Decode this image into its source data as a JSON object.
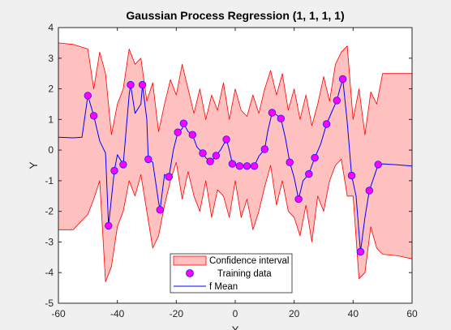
{
  "chart_data": {
    "type": "line",
    "title": "Gaussian Process Regression (1, 1, 1, 1)",
    "xlabel": "X",
    "ylabel": "Y",
    "xlim": [
      -60,
      60
    ],
    "ylim": [
      -5,
      4
    ],
    "xticks": [
      -60,
      -40,
      -20,
      0,
      20,
      40,
      60
    ],
    "yticks": [
      -5,
      -4,
      -3,
      -2,
      -1,
      0,
      1,
      2,
      3,
      4
    ],
    "grid": false,
    "legend_placement": "bottom-center",
    "colors": {
      "background": "#f0f0f0",
      "axes_bg": "#ffffff",
      "band_fill": "#ffc0c0",
      "band_edge": "#ff0000",
      "marker_fill": "#ff00ff",
      "marker_edge": "#1a1aff",
      "mean_line": "#0000ff"
    },
    "series": [
      {
        "name": "Confidence interval",
        "kind": "band",
        "x": [
          -60,
          -55,
          -50,
          -48,
          -46,
          -44,
          -42,
          -40,
          -38,
          -36,
          -34,
          -32,
          -30,
          -28,
          -26,
          -24,
          -22,
          -20,
          -18,
          -16,
          -14,
          -12,
          -10,
          -8,
          -6,
          -4,
          -2,
          0,
          2,
          4,
          6,
          8,
          10,
          12,
          14,
          16,
          18,
          20,
          22,
          24,
          26,
          28,
          30,
          32,
          34,
          36,
          38,
          40,
          42,
          44,
          46,
          48,
          50,
          55,
          60
        ],
        "upper": [
          3.5,
          3.45,
          3.3,
          2.0,
          3.2,
          2.5,
          0.5,
          1.5,
          2.0,
          3.3,
          2.8,
          3.0,
          1.6,
          2.2,
          0.6,
          1.5,
          2.3,
          1.8,
          2.8,
          2.0,
          1.2,
          2.0,
          1.0,
          1.8,
          1.3,
          2.2,
          1.0,
          2.0,
          1.3,
          1.1,
          1.8,
          1.2,
          2.0,
          2.6,
          1.8,
          2.5,
          1.3,
          2.0,
          1.0,
          1.8,
          0.8,
          1.5,
          2.4,
          1.6,
          2.8,
          3.2,
          3.4,
          1.0,
          2.0,
          0.5,
          1.9,
          1.5,
          2.5,
          2.5,
          2.5
        ],
        "lower": [
          -2.6,
          -2.6,
          -2.1,
          -1.6,
          -1.0,
          -4.3,
          -3.8,
          -2.5,
          -2.0,
          -1.0,
          -1.5,
          -0.8,
          -2.0,
          -3.2,
          -2.8,
          -1.8,
          -1.0,
          -0.4,
          -1.6,
          -0.7,
          -1.5,
          -2.0,
          -1.0,
          -2.2,
          -1.3,
          -1.5,
          -2.2,
          -1.0,
          -2.2,
          -1.6,
          -2.6,
          -2.0,
          -1.2,
          -0.5,
          -1.8,
          -1.0,
          -2.0,
          -2.2,
          -2.8,
          -1.8,
          -3.0,
          -1.5,
          -2.0,
          -1.0,
          -0.5,
          -0.3,
          -1.5,
          -1.5,
          -4.2,
          -4.0,
          -2.5,
          -3.2,
          -3.4,
          -3.45,
          -3.55
        ]
      },
      {
        "name": "Training data",
        "kind": "scatter",
        "x": [
          -50,
          -48,
          -43,
          -41,
          -38,
          -35.5,
          -31.5,
          -29.5,
          -25.5,
          -22.5,
          -19.5,
          -17.5,
          -14.5,
          -11,
          -8.5,
          -6.5,
          -3,
          -1,
          1.5,
          4,
          6.5,
          10,
          12.5,
          15.5,
          18.5,
          21.5,
          25,
          27,
          31,
          34.5,
          36.5,
          39.5,
          42.5,
          45.5,
          48.5
        ],
        "y": [
          1.78,
          1.12,
          -2.47,
          -0.67,
          -0.47,
          2.13,
          2.13,
          -0.3,
          -1.95,
          -0.87,
          0.58,
          0.87,
          0.5,
          -0.1,
          -0.37,
          -0.18,
          0.35,
          -0.45,
          -0.52,
          -0.52,
          -0.52,
          0.03,
          1.22,
          1.03,
          -0.4,
          -1.6,
          -0.78,
          -0.25,
          0.85,
          1.62,
          2.32,
          -0.83,
          -3.32,
          -1.32,
          -0.47
        ]
      },
      {
        "name": "f Mean",
        "kind": "line",
        "x": [
          -60,
          -55,
          -52,
          -50,
          -48,
          -46,
          -44,
          -43,
          -41,
          -40,
          -38,
          -36,
          -35.5,
          -34,
          -32,
          -31.5,
          -30,
          -29.5,
          -28,
          -26,
          -25.5,
          -24,
          -22.5,
          -21,
          -19.5,
          -18,
          -17.5,
          -16,
          -14.5,
          -13,
          -11,
          -10,
          -8.5,
          -7.5,
          -6.5,
          -5,
          -3,
          -2,
          -1,
          0,
          1.5,
          3,
          4,
          5,
          6.5,
          8,
          10,
          11,
          12.5,
          14,
          15.5,
          17,
          18.5,
          20,
          21.5,
          23,
          25,
          26,
          27,
          29,
          31,
          33,
          34.5,
          35.5,
          36.5,
          38,
          39.5,
          41,
          42.5,
          44,
          45.5,
          47,
          48.5,
          50,
          55,
          60
        ],
        "y": [
          0.42,
          0.4,
          0.42,
          1.78,
          1.12,
          0.3,
          -0.1,
          -2.47,
          -0.67,
          -0.15,
          -0.47,
          1.8,
          2.13,
          1.2,
          1.5,
          2.13,
          1.0,
          -0.3,
          -0.4,
          -1.7,
          -1.95,
          -0.8,
          -0.87,
          0.0,
          0.58,
          0.7,
          0.87,
          0.6,
          0.5,
          0.1,
          -0.1,
          -0.25,
          -0.37,
          -0.3,
          -0.18,
          0.0,
          0.35,
          0.0,
          -0.45,
          -0.48,
          -0.52,
          -0.5,
          -0.52,
          -0.53,
          -0.52,
          -0.2,
          0.03,
          0.6,
          1.22,
          1.15,
          1.03,
          0.4,
          -0.4,
          -0.9,
          -1.6,
          -1.0,
          -0.78,
          -0.5,
          -0.25,
          0.2,
          0.85,
          1.3,
          1.62,
          2.0,
          2.32,
          0.9,
          -0.83,
          -1.5,
          -3.32,
          -2.2,
          -1.32,
          -0.9,
          -0.47,
          -0.45,
          -0.48,
          -0.52
        ]
      }
    ]
  }
}
